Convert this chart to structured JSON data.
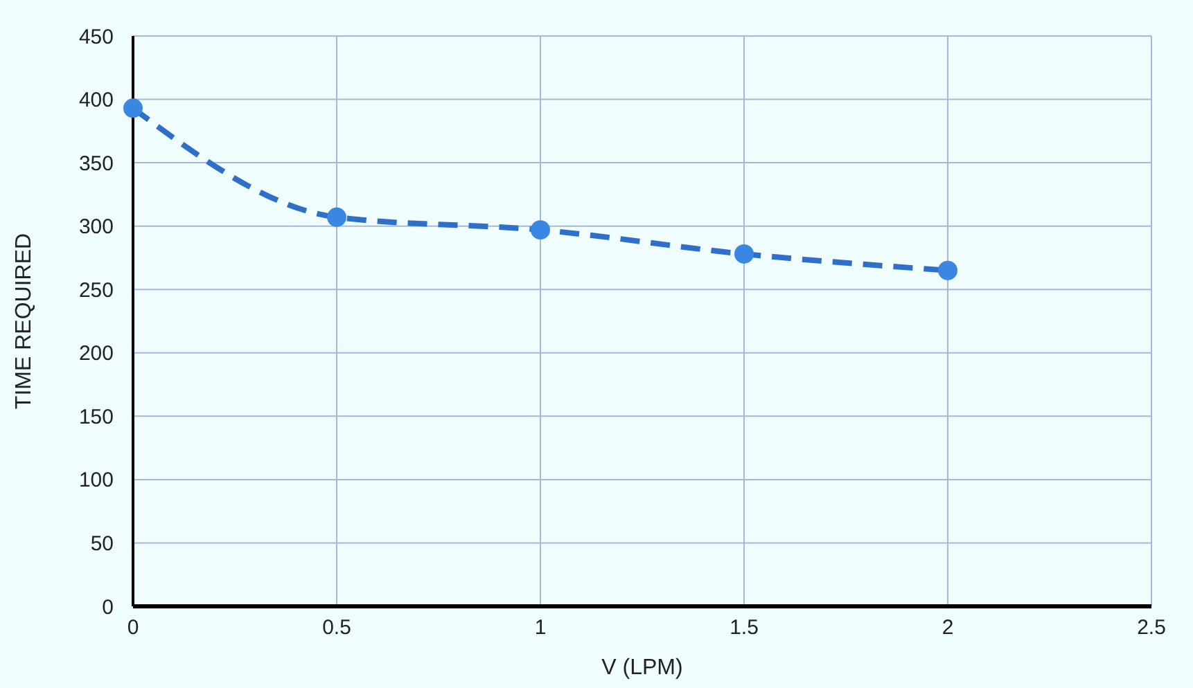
{
  "chart_data": {
    "type": "line",
    "xlabel": "V (LPM)",
    "ylabel": "TIME REQUIRED",
    "x": [
      0,
      0.5,
      1,
      1.5,
      2
    ],
    "series": [
      {
        "color": "#2f6fc9",
        "values": [
          393,
          307,
          297,
          278,
          265
        ]
      }
    ],
    "xlim": [
      0,
      2.5
    ],
    "xticks": [
      0,
      {
        "value": 0.5,
        "label": "0.5"
      },
      1,
      {
        "value": 1.5,
        "label": "1.5"
      },
      2,
      {
        "value": 2.5,
        "label": "2.5"
      }
    ],
    "ylim": [
      0,
      450
    ],
    "yticks": [
      0,
      50,
      100,
      150,
      200,
      250,
      300,
      350,
      400,
      450
    ],
    "grid": true,
    "marker": "circle",
    "line_style": "dashed"
  }
}
